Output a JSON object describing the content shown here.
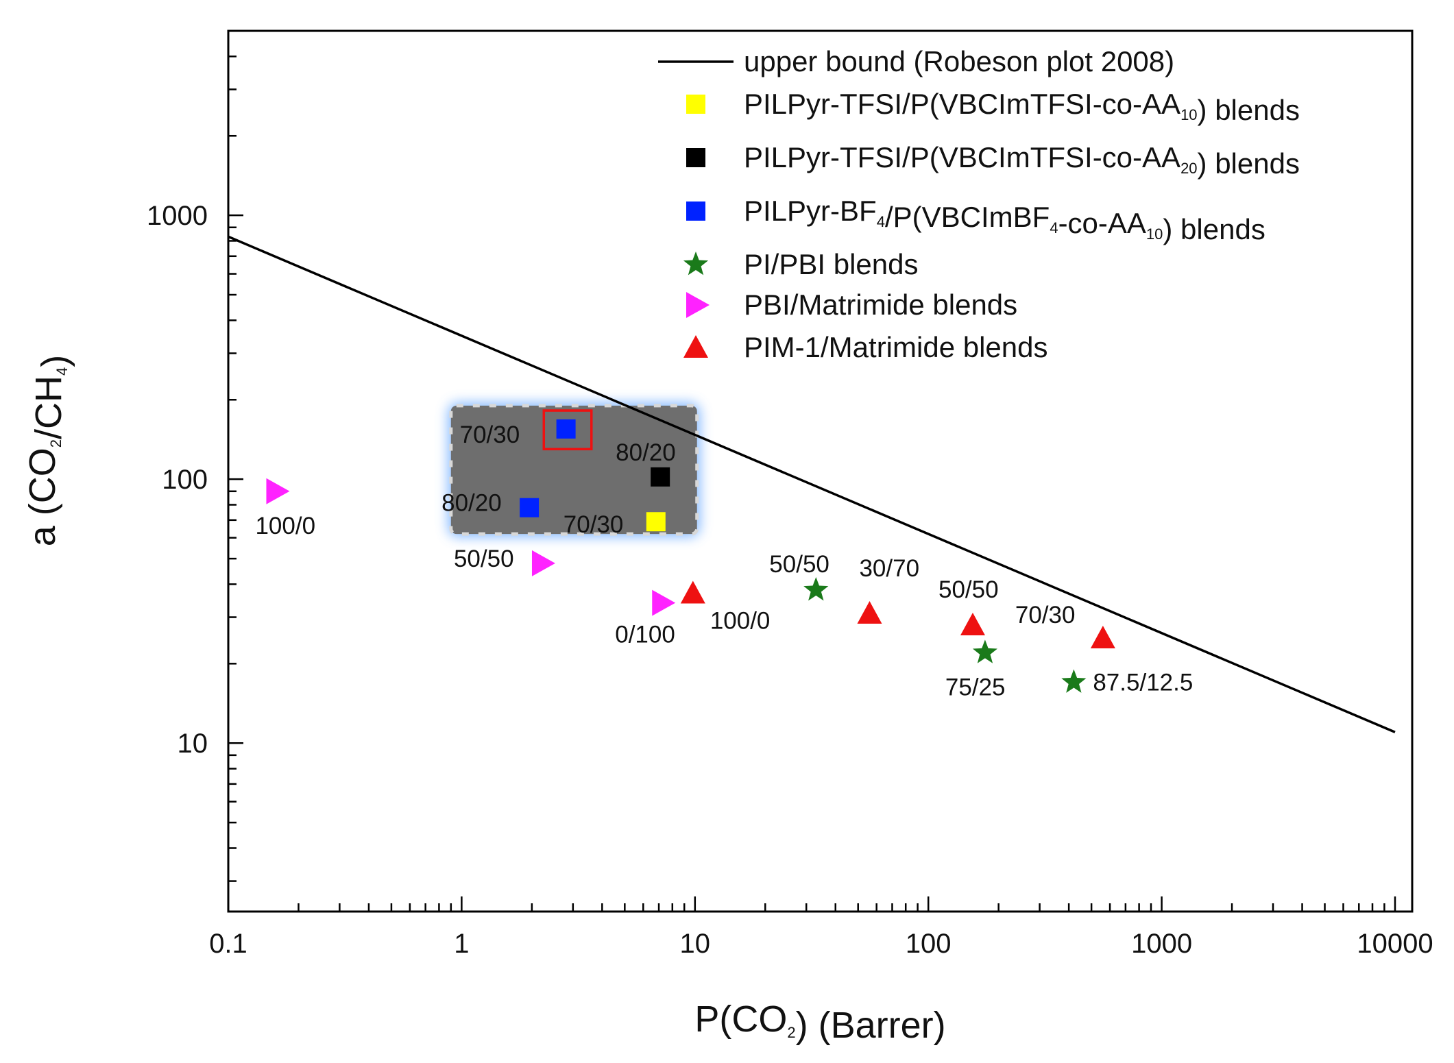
{
  "chart_data": {
    "type": "scatter",
    "title": "",
    "x_scale": "log",
    "y_scale": "log",
    "xlim": [
      0.1,
      10000
    ],
    "ylim": [
      2.3,
      5000
    ],
    "x_ticks": [
      0.1,
      1,
      10,
      100,
      1000,
      10000
    ],
    "x_tick_labels": [
      "0.1",
      "1",
      "10",
      "100",
      "1000",
      "10000"
    ],
    "y_ticks": [
      10,
      100,
      1000
    ],
    "y_tick_labels": [
      "10",
      "100",
      "1000"
    ],
    "xlabel": {
      "main": "P(CO",
      "sub": "2",
      "tail": ") (Barrer)"
    },
    "ylabel": {
      "a": "a (CO",
      "sub1": "2",
      "b": "/CH",
      "sub2": "4",
      "c": ")"
    },
    "legend_position": "top-right",
    "upper_bound": {
      "name": "upper bound (Robeson plot 2008)",
      "x": [
        0.1,
        10000
      ],
      "y": [
        830,
        11
      ],
      "color": "#000000"
    },
    "series": [
      {
        "id": "tfsi10",
        "legend": {
          "pre": "PILPyr-TFSI/P(VBCImTFSI-co-AA",
          "sub1": "10",
          "post": ") blends"
        },
        "marker": "square",
        "color": "#ffff00",
        "points": [
          {
            "x": 6.8,
            "y": 69,
            "label": "70/30"
          }
        ]
      },
      {
        "id": "tfsi20",
        "legend": {
          "pre": "PILPyr-TFSI/P(VBCImTFSI-co-AA",
          "sub1": "20",
          "post": ") blends"
        },
        "marker": "square",
        "color": "#000000",
        "points": [
          {
            "x": 7.1,
            "y": 102,
            "label": "80/20"
          }
        ]
      },
      {
        "id": "bf4",
        "legend": {
          "pre": "PILPyr-BF",
          "sub1": "4",
          "mid": "/P(VBCImBF",
          "sub2": "4",
          "mid2": "-co-AA",
          "sub3": "10",
          "post": ") blends"
        },
        "marker": "square",
        "color": "#0022ff",
        "points": [
          {
            "x": 2.8,
            "y": 155,
            "label": "70/30"
          },
          {
            "x": 1.95,
            "y": 78,
            "label": "80/20"
          }
        ]
      },
      {
        "id": "pipbi",
        "legend": {
          "pre": "PI/PBI blends"
        },
        "marker": "star",
        "color": "#1a7a1a",
        "points": [
          {
            "x": 33,
            "y": 38,
            "label": "50/50"
          },
          {
            "x": 175,
            "y": 22,
            "label": "75/25"
          },
          {
            "x": 420,
            "y": 17,
            "label": "87.5/12.5"
          }
        ]
      },
      {
        "id": "pbimat",
        "legend": {
          "pre": "PBI/Matrimide blends"
        },
        "marker": "triangle-right",
        "color": "#ff22ff",
        "points": [
          {
            "x": 0.16,
            "y": 90,
            "label": "100/0"
          },
          {
            "x": 2.2,
            "y": 48,
            "label": "50/50"
          },
          {
            "x": 7.2,
            "y": 34,
            "label": "0/100"
          }
        ]
      },
      {
        "id": "pimmat",
        "legend": {
          "pre": "PIM-1/Matrimide blends"
        },
        "marker": "triangle-up",
        "color": "#ee1111",
        "points": [
          {
            "x": 9.8,
            "y": 37,
            "label": "100/0"
          },
          {
            "x": 56,
            "y": 31,
            "label": "30/70"
          },
          {
            "x": 155,
            "y": 28,
            "label": "50/50"
          },
          {
            "x": 560,
            "y": 25,
            "label": "70/30"
          }
        ]
      }
    ],
    "highlight_region": {
      "x": [
        0.9,
        10.2
      ],
      "y": [
        62,
        190
      ],
      "color": "#6e6e6e"
    },
    "highlight_box": {
      "x": [
        2.25,
        3.6
      ],
      "y": [
        130,
        182
      ],
      "color": "#ee1111"
    }
  }
}
